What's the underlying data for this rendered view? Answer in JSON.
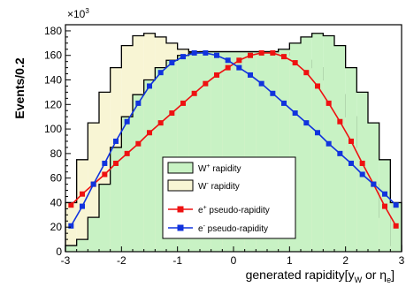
{
  "chart_data": {
    "type": "line",
    "ylabel": "Events/0.2",
    "y_multiplier": "×10",
    "y_multiplier_exp": "3",
    "xlabel_parts": {
      "main": "generated rapidity[y",
      "sub1": "W",
      "mid": " or η",
      "sub2": "e",
      "end": "]"
    },
    "xlim": [
      -3,
      3
    ],
    "ylim": [
      0,
      185
    ],
    "xticks": [
      -3,
      -2,
      -1,
      0,
      1,
      2,
      3
    ],
    "yticks": [
      0,
      20,
      40,
      60,
      80,
      100,
      120,
      140,
      160,
      180
    ],
    "bin_edges": [
      -3.0,
      -2.8,
      -2.6,
      -2.4,
      -2.2,
      -2.0,
      -1.8,
      -1.6,
      -1.4,
      -1.2,
      -1.0,
      -0.8,
      -0.6,
      -0.4,
      -0.2,
      0.0,
      0.2,
      0.4,
      0.6,
      0.8,
      1.0,
      1.2,
      1.4,
      1.6,
      1.8,
      2.0,
      2.2,
      2.4,
      2.6,
      2.8,
      3.0
    ],
    "histograms": [
      {
        "name_main": "W",
        "name_sup": "+",
        "name_rest": " rapidity",
        "fill": "#c8f2c4",
        "stroke": "#000000",
        "values": [
          5,
          10,
          28,
          55,
          85,
          110,
          128,
          140,
          150,
          156,
          160,
          162,
          163,
          163,
          163,
          163,
          163,
          163,
          163,
          165,
          170,
          175,
          178,
          176,
          168,
          150,
          130,
          105,
          75,
          40
        ]
      },
      {
        "name_main": "W",
        "name_sup": "-",
        "name_rest": " rapidity",
        "fill": "#f8f5d4",
        "stroke": "#000000",
        "values": [
          40,
          75,
          105,
          130,
          150,
          168,
          176,
          178,
          175,
          170,
          165,
          163,
          163,
          163,
          163,
          163,
          163,
          163,
          163,
          162,
          160,
          156,
          150,
          140,
          128,
          110,
          85,
          55,
          28,
          5
        ]
      }
    ],
    "series": [
      {
        "name_main": "e",
        "name_sup": "+",
        "name_rest": " pseudo-rapidity",
        "color": "#ee1111",
        "x": [
          -2.9,
          -2.7,
          -2.5,
          -2.3,
          -2.1,
          -1.9,
          -1.7,
          -1.5,
          -1.3,
          -1.1,
          -0.9,
          -0.7,
          -0.5,
          -0.3,
          -0.1,
          0.1,
          0.3,
          0.5,
          0.7,
          0.9,
          1.1,
          1.3,
          1.5,
          1.7,
          1.9,
          2.1,
          2.3,
          2.5,
          2.7,
          2.9
        ],
        "values": [
          38,
          47,
          55,
          63,
          72,
          80,
          88,
          97,
          105,
          113,
          121,
          129,
          137,
          144,
          150,
          156,
          160,
          162,
          162,
          159,
          154,
          146,
          135,
          121,
          106,
          90,
          72,
          55,
          37,
          21
        ]
      },
      {
        "name_main": "e",
        "name_sup": "-",
        "name_rest": " pseudo-rapidity",
        "color": "#1133dd",
        "x": [
          -2.9,
          -2.7,
          -2.5,
          -2.3,
          -2.1,
          -1.9,
          -1.7,
          -1.5,
          -1.3,
          -1.1,
          -0.9,
          -0.7,
          -0.5,
          -0.3,
          -0.1,
          0.1,
          0.3,
          0.5,
          0.7,
          0.9,
          1.1,
          1.3,
          1.5,
          1.7,
          1.9,
          2.1,
          2.3,
          2.5,
          2.7,
          2.9
        ],
        "values": [
          21,
          37,
          55,
          72,
          90,
          106,
          121,
          135,
          146,
          154,
          159,
          162,
          162,
          160,
          156,
          150,
          144,
          137,
          129,
          121,
          113,
          105,
          97,
          88,
          80,
          72,
          63,
          55,
          47,
          38
        ]
      }
    ],
    "legend": {
      "position": "lower-center"
    }
  }
}
